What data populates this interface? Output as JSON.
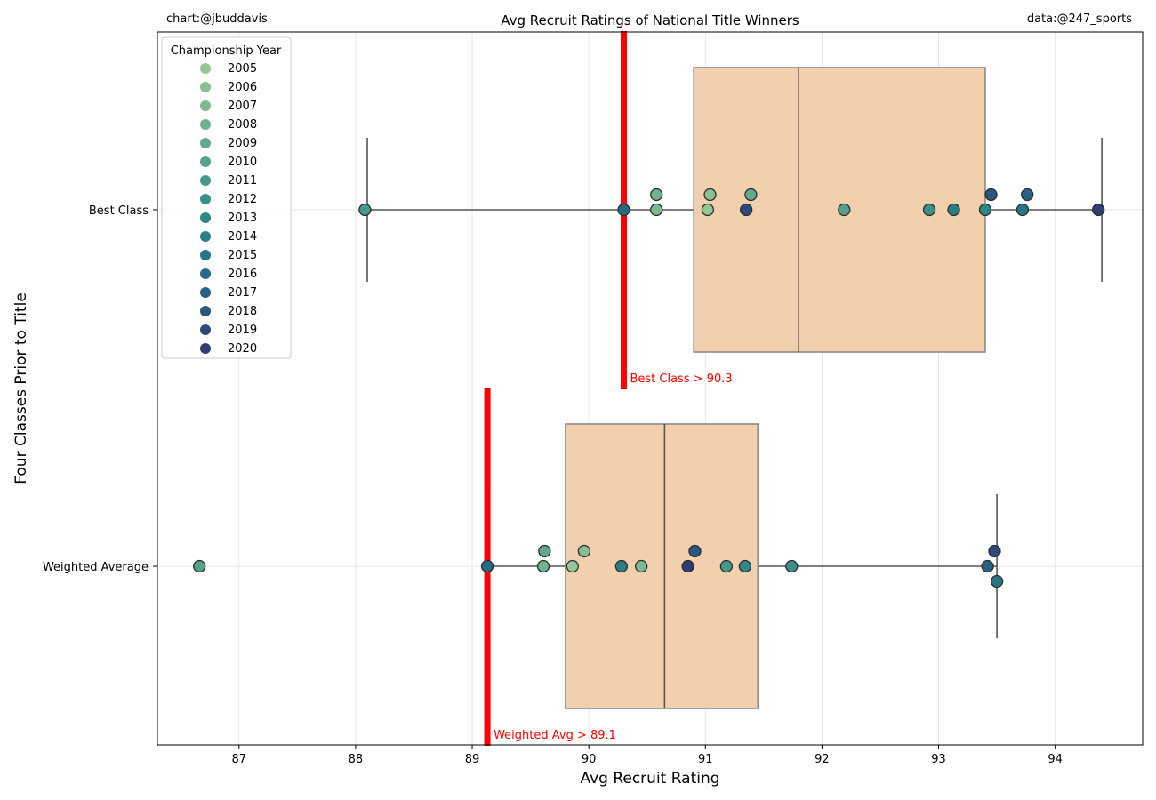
{
  "header": {
    "credit_left": "chart:@jbuddavis",
    "credit_right": "data:@247_sports"
  },
  "chart_data": {
    "type": "box-strip",
    "title": "Avg Recruit Ratings of National Title Winners",
    "xlabel": "Avg Recruit Rating",
    "ylabel": "Four Classes Prior to Title",
    "xlim": [
      86.3,
      94.75
    ],
    "xticks": [
      87,
      88,
      89,
      90,
      91,
      92,
      93,
      94
    ],
    "grid": true,
    "legend": {
      "title": "Championship Year",
      "placement": "top-left",
      "entries": [
        "2005",
        "2006",
        "2007",
        "2008",
        "2009",
        "2010",
        "2011",
        "2012",
        "2013",
        "2014",
        "2015",
        "2016",
        "2017",
        "2018",
        "2019",
        "2020"
      ],
      "colors": [
        "#93c596",
        "#89bf93",
        "#7db891",
        "#70b18f",
        "#62a98e",
        "#54a18c",
        "#45998b",
        "#389189",
        "#2f8888",
        "#2a7f87",
        "#277585",
        "#276b84",
        "#286182",
        "#2b567f",
        "#2e4a7b",
        "#303e76"
      ]
    },
    "categories": [
      "Best Class",
      "Weighted Average"
    ],
    "boxes": [
      {
        "category": "Best Class",
        "q1": 90.9,
        "median": 91.8,
        "q3": 93.4,
        "whisker_low": 88.1,
        "whisker_high": 94.4
      },
      {
        "category": "Weighted Average",
        "q1": 89.8,
        "median": 90.65,
        "q3": 91.45,
        "whisker_low": 89.15,
        "whisker_high": 93.5
      }
    ],
    "points": [
      {
        "category": "Best Class",
        "year": "2005",
        "x": 91.02,
        "jitter": 0
      },
      {
        "category": "Best Class",
        "year": "2006",
        "x": 91.04,
        "jitter": 1
      },
      {
        "category": "Best Class",
        "year": "2007",
        "x": 90.58,
        "jitter": 0
      },
      {
        "category": "Best Class",
        "year": "2008",
        "x": 90.58,
        "jitter": 1
      },
      {
        "category": "Best Class",
        "year": "2009",
        "x": 91.39,
        "jitter": 1
      },
      {
        "category": "Best Class",
        "year": "2010",
        "x": 92.19,
        "jitter": 0
      },
      {
        "category": "Best Class",
        "year": "2011",
        "x": 88.08,
        "jitter": 0
      },
      {
        "category": "Best Class",
        "year": "2012",
        "x": 92.92,
        "jitter": 0
      },
      {
        "category": "Best Class",
        "year": "2013",
        "x": 93.4,
        "jitter": 0
      },
      {
        "category": "Best Class",
        "year": "2014",
        "x": 93.13,
        "jitter": 0
      },
      {
        "category": "Best Class",
        "year": "2015",
        "x": 93.72,
        "jitter": 0
      },
      {
        "category": "Best Class",
        "year": "2016",
        "x": 90.3,
        "jitter": 0
      },
      {
        "category": "Best Class",
        "year": "2017",
        "x": 93.76,
        "jitter": 1
      },
      {
        "category": "Best Class",
        "year": "2018",
        "x": 93.45,
        "jitter": 1
      },
      {
        "category": "Best Class",
        "year": "2019",
        "x": 91.35,
        "jitter": 0
      },
      {
        "category": "Best Class",
        "year": "2020",
        "x": 94.37,
        "jitter": 0
      },
      {
        "category": "Weighted Average",
        "year": "2005",
        "x": 89.86,
        "jitter": 0
      },
      {
        "category": "Weighted Average",
        "year": "2006",
        "x": 89.96,
        "jitter": 1
      },
      {
        "category": "Weighted Average",
        "year": "2007",
        "x": 90.45,
        "jitter": 0
      },
      {
        "category": "Weighted Average",
        "year": "2008",
        "x": 89.61,
        "jitter": 0
      },
      {
        "category": "Weighted Average",
        "year": "2009",
        "x": 89.62,
        "jitter": 1
      },
      {
        "category": "Weighted Average",
        "year": "2010",
        "x": 86.66,
        "jitter": 0
      },
      {
        "category": "Weighted Average",
        "year": "2011",
        "x": 91.18,
        "jitter": 0
      },
      {
        "category": "Weighted Average",
        "year": "2012",
        "x": 91.74,
        "jitter": 0
      },
      {
        "category": "Weighted Average",
        "year": "2013",
        "x": 91.34,
        "jitter": 0
      },
      {
        "category": "Weighted Average",
        "year": "2014",
        "x": 90.28,
        "jitter": 0
      },
      {
        "category": "Weighted Average",
        "year": "2015",
        "x": 93.5,
        "jitter": -1
      },
      {
        "category": "Weighted Average",
        "year": "2016",
        "x": 89.13,
        "jitter": 0
      },
      {
        "category": "Weighted Average",
        "year": "2017",
        "x": 93.42,
        "jitter": 0
      },
      {
        "category": "Weighted Average",
        "year": "2018",
        "x": 90.91,
        "jitter": 1
      },
      {
        "category": "Weighted Average",
        "year": "2019",
        "x": 93.48,
        "jitter": 1
      },
      {
        "category": "Weighted Average",
        "year": "2020",
        "x": 90.85,
        "jitter": 0
      }
    ],
    "thresholds": [
      {
        "category": "Best Class",
        "x": 90.3,
        "label": "Best Class > 90.3",
        "color": "#ff0000"
      },
      {
        "category": "Weighted Average",
        "x": 89.13,
        "label": "Weighted Avg > 89.1",
        "color": "#ff0000"
      }
    ],
    "box_color": "#f2cfad",
    "line_color": "#555555"
  }
}
